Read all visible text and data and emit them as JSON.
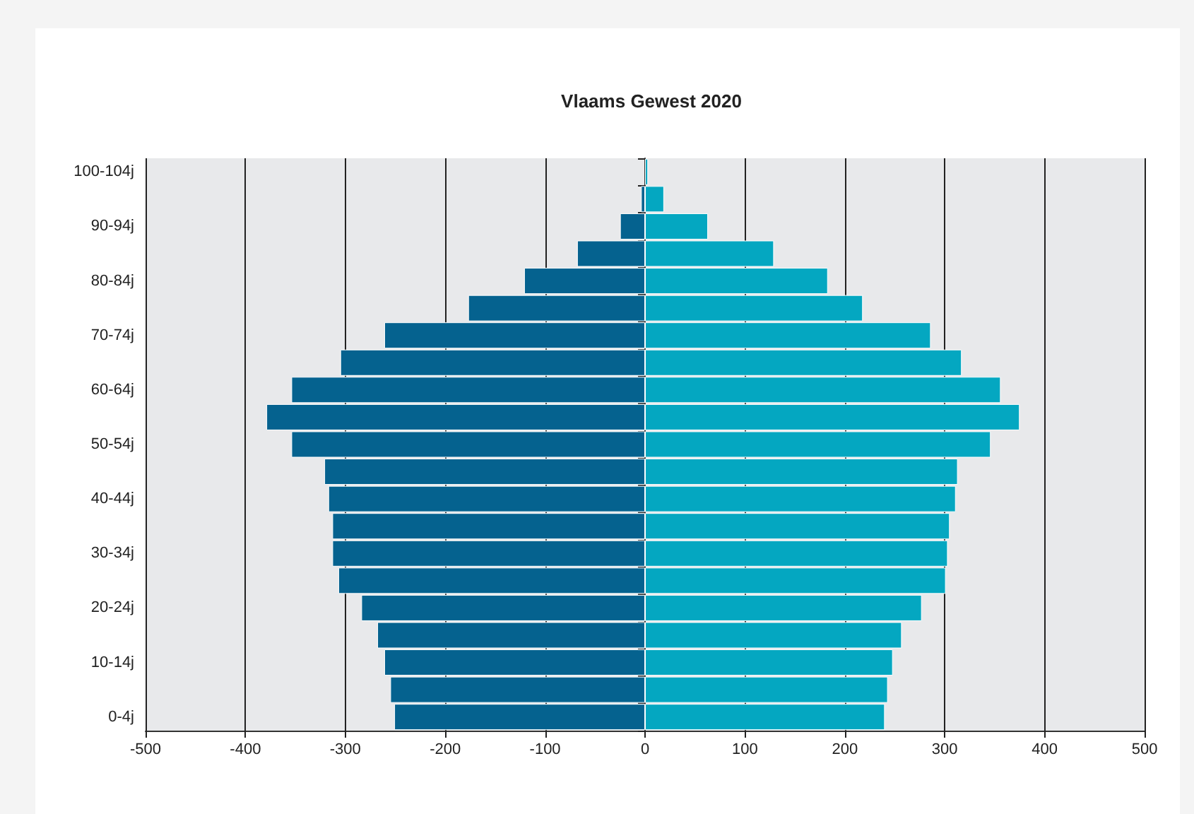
{
  "chart_data": {
    "type": "bar",
    "title": "Vlaams Gewest 2020",
    "orientation": "horizontal",
    "stacked": true,
    "categories": [
      "100-104j",
      null,
      "90-94j",
      null,
      "80-84j",
      null,
      "70-74j",
      null,
      "60-64j",
      null,
      "50-54j",
      null,
      "40-44j",
      null,
      "30-34j",
      null,
      "20-24j",
      null,
      "10-14j",
      null,
      "0-4j"
    ],
    "series": [
      {
        "color": "#05628f",
        "values": [
          null,
          -4,
          -25,
          -68,
          -121,
          -177,
          -261,
          -305,
          -354,
          -379,
          -354,
          -321,
          -317,
          -313,
          -313,
          -307,
          -284,
          -268,
          -261,
          -255,
          -251
        ]
      },
      {
        "color": "#04a7c1",
        "values": [
          3,
          19,
          63,
          129,
          183,
          218,
          286,
          317,
          356,
          375,
          346,
          313,
          311,
          305,
          303,
          301,
          277,
          257,
          248,
          243,
          240
        ]
      }
    ],
    "xlim": [
      -500,
      500
    ],
    "xticks": [
      -500,
      -400,
      -300,
      -200,
      -100,
      0,
      100,
      200,
      300,
      400,
      500
    ],
    "grid": "x"
  }
}
